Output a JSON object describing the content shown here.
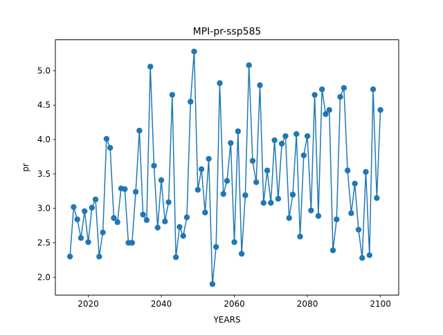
{
  "chart_data": {
    "type": "line",
    "title": "MPI-pr-ssp585",
    "xlabel": "YEARS",
    "ylabel": "pr",
    "xlim": [
      2011,
      2105
    ],
    "ylim": [
      1.74,
      5.45
    ],
    "xticks": [
      2020,
      2040,
      2060,
      2080,
      2100
    ],
    "yticks": [
      2.0,
      2.5,
      3.0,
      3.5,
      4.0,
      4.5,
      5.0
    ],
    "grid": false,
    "legend": "none",
    "series": [
      {
        "color": "#1f77b4",
        "marker": "circle",
        "x": [
          2015,
          2016,
          2017,
          2018,
          2019,
          2020,
          2021,
          2022,
          2023,
          2024,
          2025,
          2026,
          2027,
          2028,
          2029,
          2030,
          2031,
          2032,
          2033,
          2034,
          2035,
          2036,
          2037,
          2038,
          2039,
          2040,
          2041,
          2042,
          2043,
          2044,
          2045,
          2046,
          2047,
          2048,
          2049,
          2050,
          2051,
          2052,
          2053,
          2054,
          2055,
          2056,
          2057,
          2058,
          2059,
          2060,
          2061,
          2062,
          2063,
          2064,
          2065,
          2066,
          2067,
          2068,
          2069,
          2070,
          2071,
          2072,
          2073,
          2074,
          2075,
          2076,
          2077,
          2078,
          2079,
          2080,
          2081,
          2082,
          2083,
          2084,
          2085,
          2086,
          2087,
          2088,
          2089,
          2090,
          2091,
          2092,
          2093,
          2094,
          2095,
          2096,
          2097,
          2098,
          2099,
          2100
        ],
        "y": [
          2.3,
          3.02,
          2.84,
          2.57,
          2.96,
          2.51,
          3.01,
          3.13,
          2.3,
          2.65,
          4.01,
          3.88,
          2.86,
          2.8,
          3.29,
          3.28,
          2.5,
          2.5,
          3.24,
          4.13,
          2.91,
          2.83,
          5.06,
          3.62,
          2.72,
          3.41,
          2.81,
          3.09,
          4.65,
          2.29,
          2.73,
          2.6,
          2.87,
          4.55,
          5.28,
          3.27,
          3.57,
          2.94,
          3.72,
          1.9,
          2.44,
          4.82,
          3.21,
          3.4,
          3.95,
          2.51,
          4.12,
          2.34,
          3.19,
          5.08,
          3.69,
          3.38,
          4.79,
          3.08,
          3.55,
          3.08,
          3.99,
          3.14,
          3.94,
          4.05,
          2.86,
          3.2,
          4.08,
          2.59,
          3.77,
          4.05,
          2.97,
          4.65,
          2.89,
          4.73,
          4.37,
          4.43,
          2.39,
          2.84,
          4.62,
          4.75,
          3.55,
          2.93,
          3.36,
          2.69,
          2.28,
          3.53,
          2.32,
          4.73,
          3.15,
          4.43
        ]
      }
    ]
  }
}
